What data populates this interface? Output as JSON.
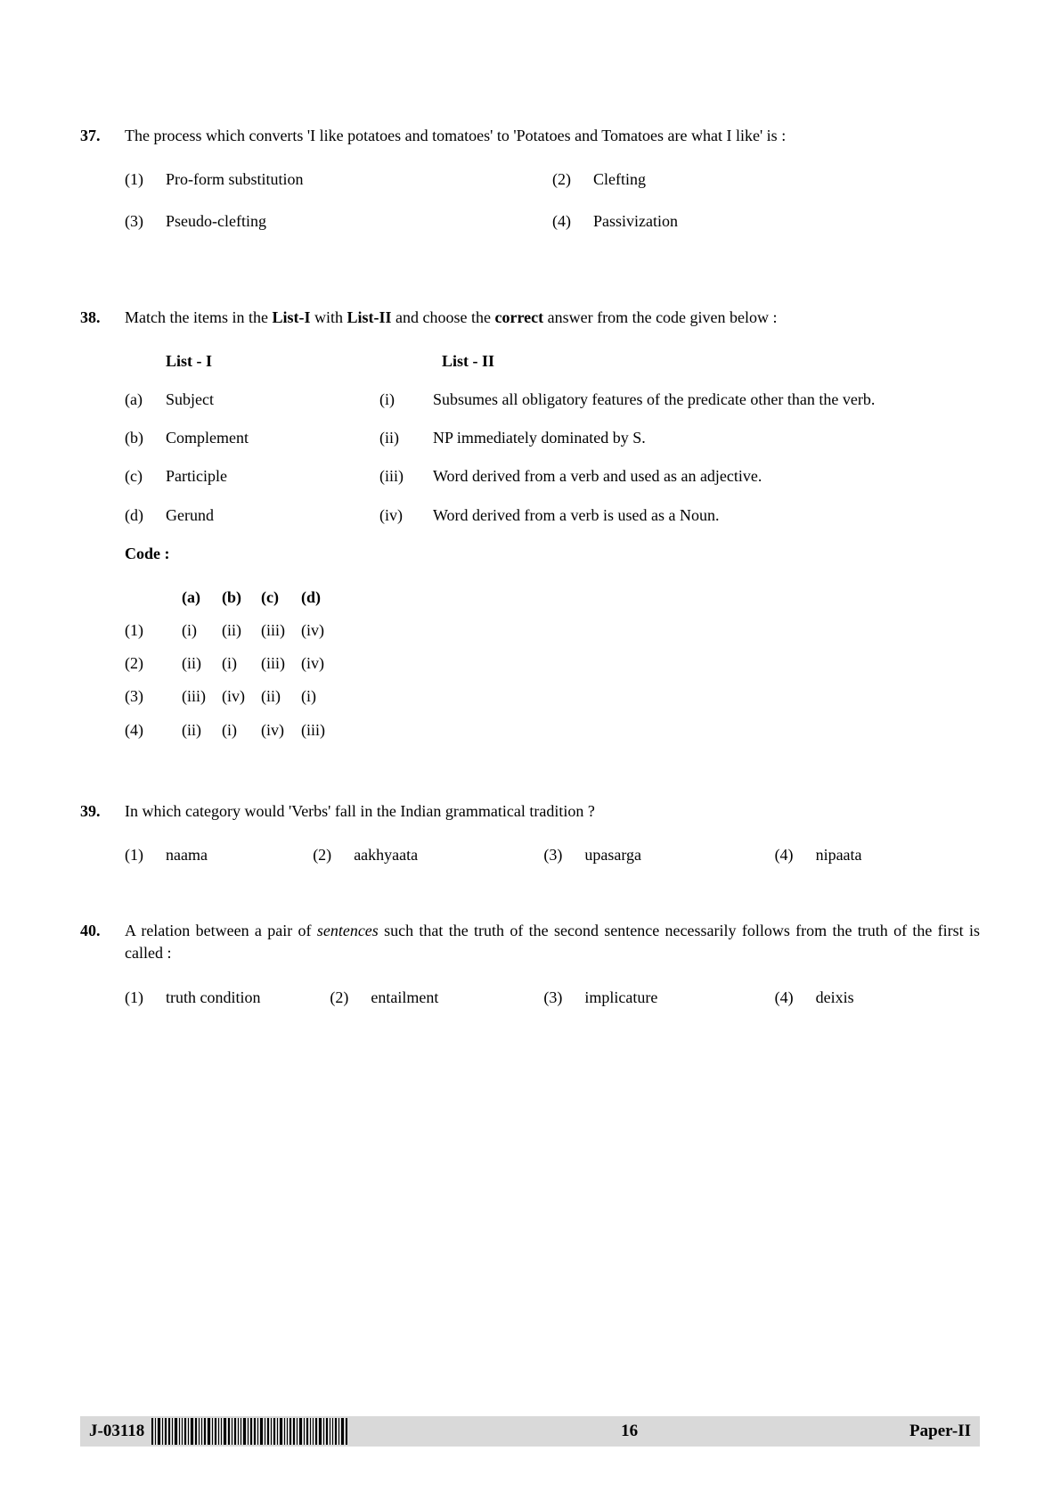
{
  "questions": {
    "q37": {
      "number": "37.",
      "text": "The process which converts 'I like potatoes and tomatoes' to 'Potatoes and Tomatoes are what I like' is :",
      "options": [
        {
          "n": "(1)",
          "t": "Pro-form substitution"
        },
        {
          "n": "(2)",
          "t": "Clefting"
        },
        {
          "n": "(3)",
          "t": "Pseudo-clefting"
        },
        {
          "n": "(4)",
          "t": "Passivization"
        }
      ]
    },
    "q38": {
      "number": "38.",
      "text_pre": "Match the items in the ",
      "list1_bold": "List-I",
      "text_mid": " with ",
      "list2_bold": "List-II",
      "text_mid2": " and choose the ",
      "correct_bold": "correct",
      "text_post": " answer from the code given below :",
      "header_l1": "List - I",
      "header_l2": "List - II",
      "rows": [
        {
          "la": "(a)",
          "lt": "Subject",
          "ra": "(i)",
          "rt": "Subsumes all obligatory features of the predicate other than the verb."
        },
        {
          "la": "(b)",
          "lt": "Complement",
          "ra": "(ii)",
          "rt": "NP immediately dominated by S."
        },
        {
          "la": "(c)",
          "lt": "Participle",
          "ra": "(iii)",
          "rt": "Word derived from a verb and used as an adjective."
        },
        {
          "la": "(d)",
          "lt": "Gerund",
          "ra": "(iv)",
          "rt": "Word derived from a verb is used as a Noun."
        }
      ],
      "code_label": "Code :",
      "code_headers": [
        "(a)",
        "(b)",
        "(c)",
        "(d)"
      ],
      "code_rows": [
        {
          "n": "(1)",
          "c": [
            "(i)",
            "(ii)",
            "(iii)",
            "(iv)"
          ]
        },
        {
          "n": "(2)",
          "c": [
            "(ii)",
            "(i)",
            "(iii)",
            "(iv)"
          ]
        },
        {
          "n": "(3)",
          "c": [
            "(iii)",
            "(iv)",
            "(ii)",
            "(i)"
          ]
        },
        {
          "n": "(4)",
          "c": [
            "(ii)",
            "(i)",
            "(iv)",
            "(iii)"
          ]
        }
      ]
    },
    "q39": {
      "number": "39.",
      "text": "In which category would 'Verbs' fall in the Indian grammatical tradition ?",
      "options": [
        {
          "n": "(1)",
          "t": "naama"
        },
        {
          "n": "(2)",
          "t": "aakhyaata"
        },
        {
          "n": "(3)",
          "t": "upasarga"
        },
        {
          "n": "(4)",
          "t": "nipaata"
        }
      ],
      "opt_widths": [
        "22%",
        "27%",
        "27%",
        "24%"
      ]
    },
    "q40": {
      "number": "40.",
      "text_pre": "A relation between a pair of ",
      "italic": "sentences",
      "text_post": " such that the truth of the second sentence necessarily follows from the truth of the first is called :",
      "options": [
        {
          "n": "(1)",
          "t": "truth condition"
        },
        {
          "n": "(2)",
          "t": "entailment"
        },
        {
          "n": "(3)",
          "t": "implicature"
        },
        {
          "n": "(4)",
          "t": "deixis"
        }
      ],
      "opt_widths": [
        "24%",
        "25%",
        "27%",
        "24%"
      ]
    }
  },
  "footer": {
    "id": "J-03118",
    "page": "16",
    "paper": "Paper-II"
  },
  "barcode_widths": [
    2,
    1,
    3,
    1,
    2,
    2,
    1,
    3,
    1,
    1,
    2,
    1,
    3,
    2,
    1,
    1,
    2,
    3,
    1,
    2,
    1,
    1,
    3,
    2,
    1,
    2,
    1,
    1,
    3,
    1,
    2,
    2,
    1,
    3,
    1,
    2,
    1,
    2,
    1,
    3,
    1,
    1,
    2,
    2,
    1,
    3,
    1,
    2,
    1,
    1,
    2,
    3,
    1,
    2,
    1,
    1,
    2,
    1,
    3,
    2
  ]
}
